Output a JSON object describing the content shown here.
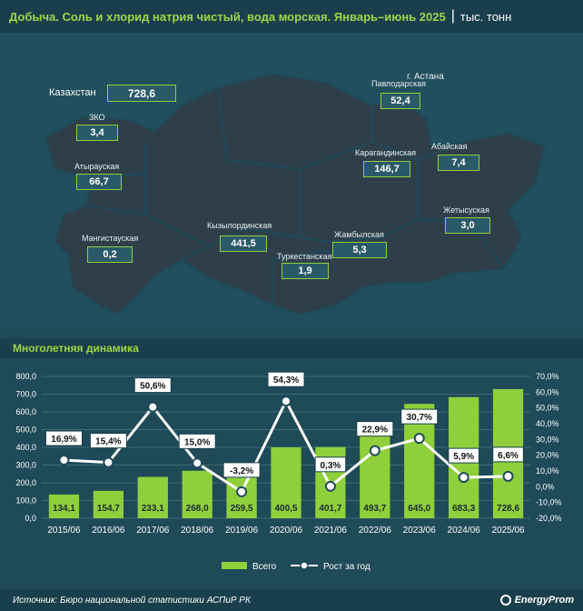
{
  "header": {
    "title": "Добыча. Соль и хлорид натрия чистый, вода морская. Январь–июнь 2025",
    "separator": "|",
    "unit": "тыс. тонн"
  },
  "map": {
    "country_label": "Казахстан",
    "country_value": "728,6",
    "capital_label": "г. Астана",
    "regions": [
      {
        "name": "ЗКО",
        "value": "3,4"
      },
      {
        "name": "Атырауская",
        "value": "66,7"
      },
      {
        "name": "Мангистауская",
        "value": "0,2"
      },
      {
        "name": "Кызылординская",
        "value": "441,5"
      },
      {
        "name": "Туркестанская",
        "value": "1,9"
      },
      {
        "name": "Жамбылская",
        "value": "5,3"
      },
      {
        "name": "Карагандинская",
        "value": "146,7"
      },
      {
        "name": "Павлодарская",
        "value": "52,4"
      },
      {
        "name": "Абайская",
        "value": "7,4"
      },
      {
        "name": "Жетысуская",
        "value": "3,0"
      }
    ]
  },
  "section_title": "Многолетняя динамика",
  "chart_data": {
    "type": "bar",
    "categories": [
      "2015/06",
      "2016/06",
      "2017/06",
      "2018/06",
      "2019/06",
      "2020/06",
      "2021/06",
      "2022/06",
      "2023/06",
      "2024/06",
      "2025/06"
    ],
    "series": [
      {
        "name": "Всего",
        "type": "bar",
        "axis": "left",
        "values": [
          134.1,
          154.7,
          233.1,
          268.0,
          259.5,
          400.5,
          401.7,
          493.7,
          645.0,
          683.3,
          728.6
        ],
        "labels": [
          "134,1",
          "154,7",
          "233,1",
          "268,0",
          "259,5",
          "400,5",
          "401,7",
          "493,7",
          "645,0",
          "683,3",
          "728,6"
        ]
      },
      {
        "name": "Рост за год",
        "type": "line",
        "axis": "right",
        "values": [
          16.9,
          15.4,
          50.6,
          15.0,
          -3.2,
          54.3,
          0.3,
          22.9,
          30.7,
          5.9,
          6.6
        ],
        "labels": [
          "16,9%",
          "15,4%",
          "50,6%",
          "15,0%",
          "-3,2%",
          "54,3%",
          "0,3%",
          "22,9%",
          "30,7%",
          "5,9%",
          "6,6%"
        ]
      }
    ],
    "y_left": {
      "ticks": [
        "0,0",
        "100,0",
        "200,0",
        "300,0",
        "400,0",
        "500,0",
        "600,0",
        "700,0",
        "800,0"
      ],
      "range": [
        0,
        800
      ]
    },
    "y_right": {
      "ticks": [
        "-20,0%",
        "-10,0%",
        "0,0%",
        "10,0%",
        "20,0%",
        "30,0%",
        "40,0%",
        "50,0%",
        "60,0%",
        "70,0%"
      ],
      "range": [
        -20,
        70
      ]
    },
    "grid": true,
    "legend_position": "bottom",
    "colors": {
      "bar": "#8fcf3c",
      "line": "#ffffff",
      "label_box_border": "#1a3f4c"
    }
  },
  "footer": {
    "source": "Источник: Бюро национальной статистики АСПиР РК",
    "logo": "EnergyProm"
  }
}
